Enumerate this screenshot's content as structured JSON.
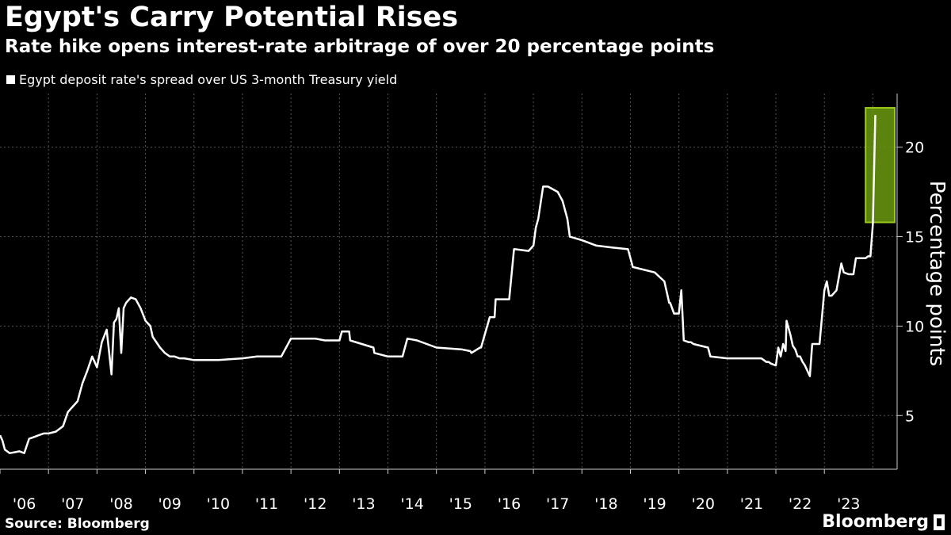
{
  "title": "Egypt's Carry Potential Rises",
  "subtitle": "Rate hike opens interest-rate arbitrage of over 20 percentage points",
  "legend_label": "Egypt deposit rate's spread over US 3-month Treasury yield",
  "source": "Source: Bloomberg",
  "brand": "Bloomberg",
  "colors": {
    "line": "#ffffff",
    "highlight_stroke": "#9ccc1c",
    "highlight_fill": "#6b9a10",
    "grid": "#555555",
    "background": "#000000"
  },
  "chart_data": {
    "type": "line",
    "title": "Egypt's Carry Potential Rises",
    "ylabel": "Percentage points",
    "xlim": [
      2006,
      2024.5
    ],
    "ylim": [
      2,
      23
    ],
    "yticks": [
      5,
      10,
      15,
      20
    ],
    "xticks": [
      {
        "label": "'06",
        "value": 2006.0
      },
      {
        "label": "'07",
        "value": 2007.0
      },
      {
        "label": "'08",
        "value": 2008.0
      },
      {
        "label": "'09",
        "value": 2009.0
      },
      {
        "label": "'10",
        "value": 2010.0
      },
      {
        "label": "'11",
        "value": 2011.0
      },
      {
        "label": "'12",
        "value": 2012.0
      },
      {
        "label": "'13",
        "value": 2013.0
      },
      {
        "label": "'14",
        "value": 2014.0
      },
      {
        "label": "'15",
        "value": 2015.0
      },
      {
        "label": "'16",
        "value": 2016.0
      },
      {
        "label": "'17",
        "value": 2017.0
      },
      {
        "label": "'18",
        "value": 2018.0
      },
      {
        "label": "'19",
        "value": 2019.0
      },
      {
        "label": "'20",
        "value": 2020.0
      },
      {
        "label": "'21",
        "value": 2021.0
      },
      {
        "label": "'22",
        "value": 2022.0
      },
      {
        "label": "'23",
        "value": 2023.0
      }
    ],
    "series": [
      {
        "name": "Egypt deposit rate's spread over US 3-month Treasury yield",
        "x": [
          2006.0,
          2006.05,
          2006.1,
          2006.2,
          2006.3,
          2006.4,
          2006.5,
          2006.6,
          2006.7,
          2006.8,
          2006.9,
          2007.0,
          2007.15,
          2007.3,
          2007.4,
          2007.5,
          2007.6,
          2007.7,
          2007.8,
          2007.9,
          2008.0,
          2008.1,
          2008.2,
          2008.3,
          2008.35,
          2008.4,
          2008.45,
          2008.5,
          2008.55,
          2008.6,
          2008.7,
          2008.8,
          2008.9,
          2009.0,
          2009.1,
          2009.15,
          2009.3,
          2009.4,
          2009.5,
          2009.6,
          2009.7,
          2009.8,
          2010.0,
          2010.5,
          2011.0,
          2011.3,
          2011.33,
          2011.8,
          2012.0,
          2012.5,
          2012.7,
          2012.72,
          2013.0,
          2013.05,
          2013.2,
          2013.22,
          2013.7,
          2013.72,
          2014.0,
          2014.3,
          2014.4,
          2014.6,
          2015.0,
          2015.5,
          2015.52,
          2015.7,
          2015.72,
          2015.9,
          2015.92,
          2016.1,
          2016.2,
          2016.22,
          2016.5,
          2016.6,
          2016.62,
          2016.9,
          2017.0,
          2017.05,
          2017.1,
          2017.2,
          2017.3,
          2017.5,
          2017.6,
          2017.7,
          2017.75,
          2018.0,
          2018.3,
          2018.6,
          2018.95,
          2019.0,
          2019.05,
          2019.5,
          2019.7,
          2019.8,
          2019.82,
          2019.9,
          2020.0,
          2020.05,
          2020.1,
          2020.2,
          2020.25,
          2020.3,
          2020.6,
          2020.65,
          2021.0,
          2021.5,
          2021.6,
          2021.7,
          2021.75,
          2021.8,
          2021.85,
          2021.9,
          2022.0,
          2022.05,
          2022.1,
          2022.15,
          2022.2,
          2022.22,
          2022.3,
          2022.35,
          2022.4,
          2022.45,
          2022.5,
          2022.55,
          2022.6,
          2022.7,
          2022.75,
          2022.8,
          2022.9,
          2023.0,
          2023.05,
          2023.1,
          2023.15,
          2023.25,
          2023.35,
          2023.4,
          2023.5,
          2023.55,
          2023.6,
          2023.65,
          2023.75,
          2023.85,
          2023.9,
          2023.95,
          2024.0,
          2024.05
        ],
        "values": [
          3.9,
          3.6,
          3.1,
          2.9,
          2.95,
          3.0,
          2.9,
          3.7,
          3.8,
          3.9,
          4.0,
          4.0,
          4.1,
          4.4,
          5.2,
          5.5,
          5.8,
          6.8,
          7.5,
          8.3,
          7.7,
          9.1,
          9.8,
          7.3,
          10.2,
          10.4,
          11.0,
          8.5,
          11.0,
          11.3,
          11.6,
          11.5,
          11.0,
          10.3,
          10.0,
          9.4,
          8.8,
          8.5,
          8.3,
          8.3,
          8.2,
          8.2,
          8.1,
          8.1,
          8.2,
          8.3,
          8.3,
          8.3,
          9.3,
          9.3,
          9.2,
          9.2,
          9.2,
          9.7,
          9.7,
          9.2,
          8.8,
          8.5,
          8.3,
          8.3,
          9.3,
          9.2,
          8.8,
          8.7,
          8.7,
          8.6,
          8.5,
          8.8,
          8.8,
          10.5,
          10.5,
          11.5,
          11.5,
          14.3,
          14.3,
          14.2,
          14.5,
          15.5,
          16.0,
          17.8,
          17.8,
          17.5,
          17.0,
          16.0,
          15.0,
          14.8,
          14.5,
          14.4,
          14.3,
          13.8,
          13.3,
          13.0,
          12.5,
          11.3,
          11.3,
          10.7,
          10.7,
          12.0,
          9.2,
          9.1,
          9.1,
          9.0,
          8.8,
          8.3,
          8.2,
          8.2,
          8.2,
          8.2,
          8.1,
          8.0,
          8.0,
          7.9,
          7.8,
          8.8,
          8.3,
          9.0,
          8.6,
          10.3,
          9.5,
          8.9,
          8.7,
          8.3,
          8.3,
          8.0,
          7.8,
          7.2,
          9.0,
          9.0,
          9.0,
          12.0,
          12.5,
          11.7,
          11.7,
          12.0,
          13.5,
          13.0,
          12.9,
          12.9,
          12.9,
          13.8,
          13.8,
          13.8,
          13.9,
          13.9,
          15.7,
          21.8
        ]
      }
    ],
    "highlight": {
      "x_start": 2023.85,
      "x_end": 2024.45,
      "y_start": 15.8,
      "y_end": 22.2
    }
  }
}
